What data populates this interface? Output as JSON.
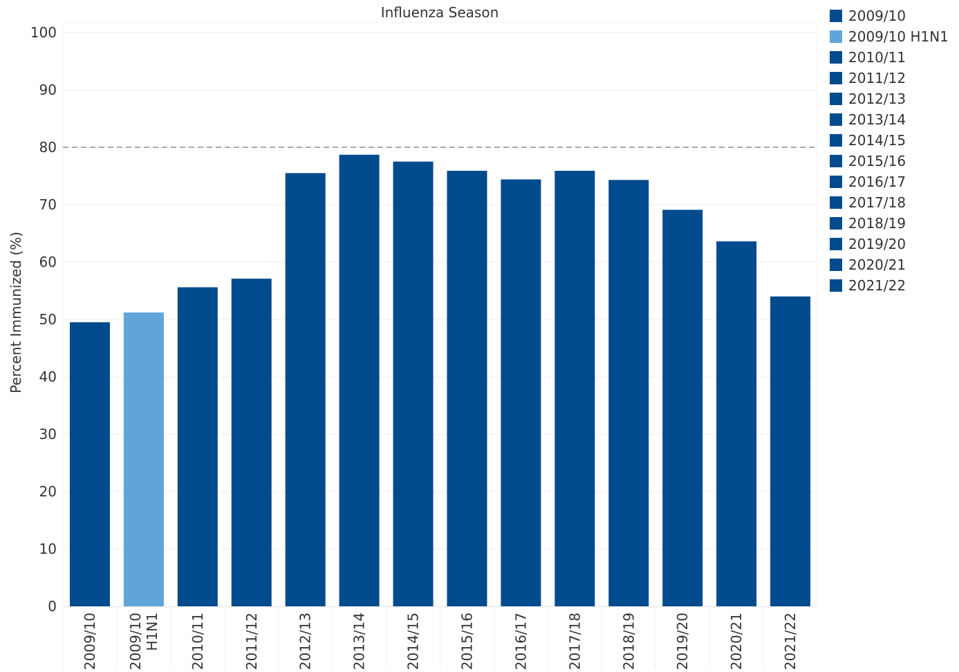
{
  "chart_data": {
    "type": "bar",
    "title": "Influenza Season",
    "ylabel": "Percent Immunized (%)",
    "xlabel": "",
    "ylim": [
      0,
      100
    ],
    "yticks": [
      0,
      10,
      20,
      30,
      40,
      50,
      60,
      70,
      80,
      90,
      100
    ],
    "reference_line": 80,
    "categories": [
      "2009/10",
      "2009/10 H1N1",
      "2010/11",
      "2011/12",
      "2012/13",
      "2013/14",
      "2014/15",
      "2015/16",
      "2016/17",
      "2017/18",
      "2018/19",
      "2019/20",
      "2020/21",
      "2021/22"
    ],
    "values": [
      49.5,
      51.2,
      55.6,
      57.1,
      75.5,
      78.7,
      77.5,
      75.9,
      74.4,
      75.9,
      74.3,
      69.1,
      63.6,
      54.0
    ],
    "colors": [
      "#004b8d",
      "#5fa5da",
      "#004b8d",
      "#004b8d",
      "#004b8d",
      "#004b8d",
      "#004b8d",
      "#004b8d",
      "#004b8d",
      "#004b8d",
      "#004b8d",
      "#004b8d",
      "#004b8d",
      "#004b8d"
    ],
    "legend_position": "right"
  }
}
